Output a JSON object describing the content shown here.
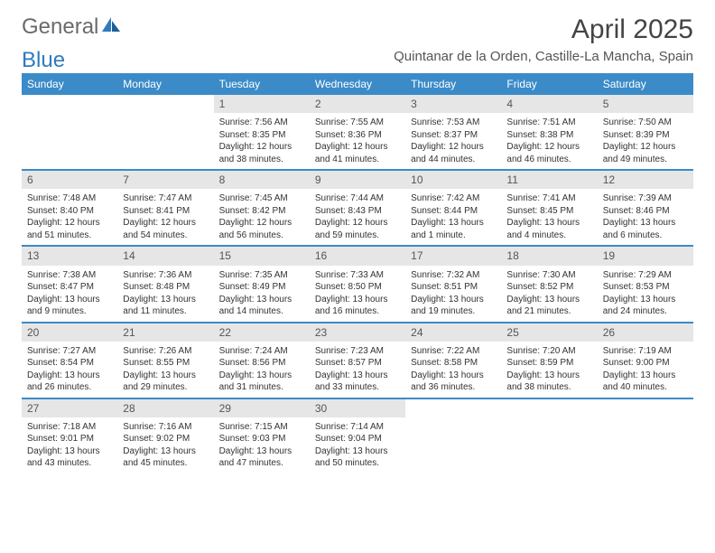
{
  "logo": {
    "word1": "General",
    "word2": "Blue"
  },
  "title": "April 2025",
  "subtitle": "Quintanar de la Orden, Castille-La Mancha, Spain",
  "weekday_labels": [
    "Sunday",
    "Monday",
    "Tuesday",
    "Wednesday",
    "Thursday",
    "Friday",
    "Saturday"
  ],
  "colors": {
    "header_bg": "#3b8bc8",
    "header_text": "#ffffff",
    "daynum_bg": "#e6e6e6",
    "rule": "#3b8bc8",
    "logo_gray": "#6a6a6a",
    "logo_blue": "#2f7bbf"
  },
  "weeks": [
    [
      null,
      null,
      {
        "n": "1",
        "sunrise": "Sunrise: 7:56 AM",
        "sunset": "Sunset: 8:35 PM",
        "daylight": "Daylight: 12 hours and 38 minutes."
      },
      {
        "n": "2",
        "sunrise": "Sunrise: 7:55 AM",
        "sunset": "Sunset: 8:36 PM",
        "daylight": "Daylight: 12 hours and 41 minutes."
      },
      {
        "n": "3",
        "sunrise": "Sunrise: 7:53 AM",
        "sunset": "Sunset: 8:37 PM",
        "daylight": "Daylight: 12 hours and 44 minutes."
      },
      {
        "n": "4",
        "sunrise": "Sunrise: 7:51 AM",
        "sunset": "Sunset: 8:38 PM",
        "daylight": "Daylight: 12 hours and 46 minutes."
      },
      {
        "n": "5",
        "sunrise": "Sunrise: 7:50 AM",
        "sunset": "Sunset: 8:39 PM",
        "daylight": "Daylight: 12 hours and 49 minutes."
      }
    ],
    [
      {
        "n": "6",
        "sunrise": "Sunrise: 7:48 AM",
        "sunset": "Sunset: 8:40 PM",
        "daylight": "Daylight: 12 hours and 51 minutes."
      },
      {
        "n": "7",
        "sunrise": "Sunrise: 7:47 AM",
        "sunset": "Sunset: 8:41 PM",
        "daylight": "Daylight: 12 hours and 54 minutes."
      },
      {
        "n": "8",
        "sunrise": "Sunrise: 7:45 AM",
        "sunset": "Sunset: 8:42 PM",
        "daylight": "Daylight: 12 hours and 56 minutes."
      },
      {
        "n": "9",
        "sunrise": "Sunrise: 7:44 AM",
        "sunset": "Sunset: 8:43 PM",
        "daylight": "Daylight: 12 hours and 59 minutes."
      },
      {
        "n": "10",
        "sunrise": "Sunrise: 7:42 AM",
        "sunset": "Sunset: 8:44 PM",
        "daylight": "Daylight: 13 hours and 1 minute."
      },
      {
        "n": "11",
        "sunrise": "Sunrise: 7:41 AM",
        "sunset": "Sunset: 8:45 PM",
        "daylight": "Daylight: 13 hours and 4 minutes."
      },
      {
        "n": "12",
        "sunrise": "Sunrise: 7:39 AM",
        "sunset": "Sunset: 8:46 PM",
        "daylight": "Daylight: 13 hours and 6 minutes."
      }
    ],
    [
      {
        "n": "13",
        "sunrise": "Sunrise: 7:38 AM",
        "sunset": "Sunset: 8:47 PM",
        "daylight": "Daylight: 13 hours and 9 minutes."
      },
      {
        "n": "14",
        "sunrise": "Sunrise: 7:36 AM",
        "sunset": "Sunset: 8:48 PM",
        "daylight": "Daylight: 13 hours and 11 minutes."
      },
      {
        "n": "15",
        "sunrise": "Sunrise: 7:35 AM",
        "sunset": "Sunset: 8:49 PM",
        "daylight": "Daylight: 13 hours and 14 minutes."
      },
      {
        "n": "16",
        "sunrise": "Sunrise: 7:33 AM",
        "sunset": "Sunset: 8:50 PM",
        "daylight": "Daylight: 13 hours and 16 minutes."
      },
      {
        "n": "17",
        "sunrise": "Sunrise: 7:32 AM",
        "sunset": "Sunset: 8:51 PM",
        "daylight": "Daylight: 13 hours and 19 minutes."
      },
      {
        "n": "18",
        "sunrise": "Sunrise: 7:30 AM",
        "sunset": "Sunset: 8:52 PM",
        "daylight": "Daylight: 13 hours and 21 minutes."
      },
      {
        "n": "19",
        "sunrise": "Sunrise: 7:29 AM",
        "sunset": "Sunset: 8:53 PM",
        "daylight": "Daylight: 13 hours and 24 minutes."
      }
    ],
    [
      {
        "n": "20",
        "sunrise": "Sunrise: 7:27 AM",
        "sunset": "Sunset: 8:54 PM",
        "daylight": "Daylight: 13 hours and 26 minutes."
      },
      {
        "n": "21",
        "sunrise": "Sunrise: 7:26 AM",
        "sunset": "Sunset: 8:55 PM",
        "daylight": "Daylight: 13 hours and 29 minutes."
      },
      {
        "n": "22",
        "sunrise": "Sunrise: 7:24 AM",
        "sunset": "Sunset: 8:56 PM",
        "daylight": "Daylight: 13 hours and 31 minutes."
      },
      {
        "n": "23",
        "sunrise": "Sunrise: 7:23 AM",
        "sunset": "Sunset: 8:57 PM",
        "daylight": "Daylight: 13 hours and 33 minutes."
      },
      {
        "n": "24",
        "sunrise": "Sunrise: 7:22 AM",
        "sunset": "Sunset: 8:58 PM",
        "daylight": "Daylight: 13 hours and 36 minutes."
      },
      {
        "n": "25",
        "sunrise": "Sunrise: 7:20 AM",
        "sunset": "Sunset: 8:59 PM",
        "daylight": "Daylight: 13 hours and 38 minutes."
      },
      {
        "n": "26",
        "sunrise": "Sunrise: 7:19 AM",
        "sunset": "Sunset: 9:00 PM",
        "daylight": "Daylight: 13 hours and 40 minutes."
      }
    ],
    [
      {
        "n": "27",
        "sunrise": "Sunrise: 7:18 AM",
        "sunset": "Sunset: 9:01 PM",
        "daylight": "Daylight: 13 hours and 43 minutes."
      },
      {
        "n": "28",
        "sunrise": "Sunrise: 7:16 AM",
        "sunset": "Sunset: 9:02 PM",
        "daylight": "Daylight: 13 hours and 45 minutes."
      },
      {
        "n": "29",
        "sunrise": "Sunrise: 7:15 AM",
        "sunset": "Sunset: 9:03 PM",
        "daylight": "Daylight: 13 hours and 47 minutes."
      },
      {
        "n": "30",
        "sunrise": "Sunrise: 7:14 AM",
        "sunset": "Sunset: 9:04 PM",
        "daylight": "Daylight: 13 hours and 50 minutes."
      },
      null,
      null,
      null
    ]
  ]
}
